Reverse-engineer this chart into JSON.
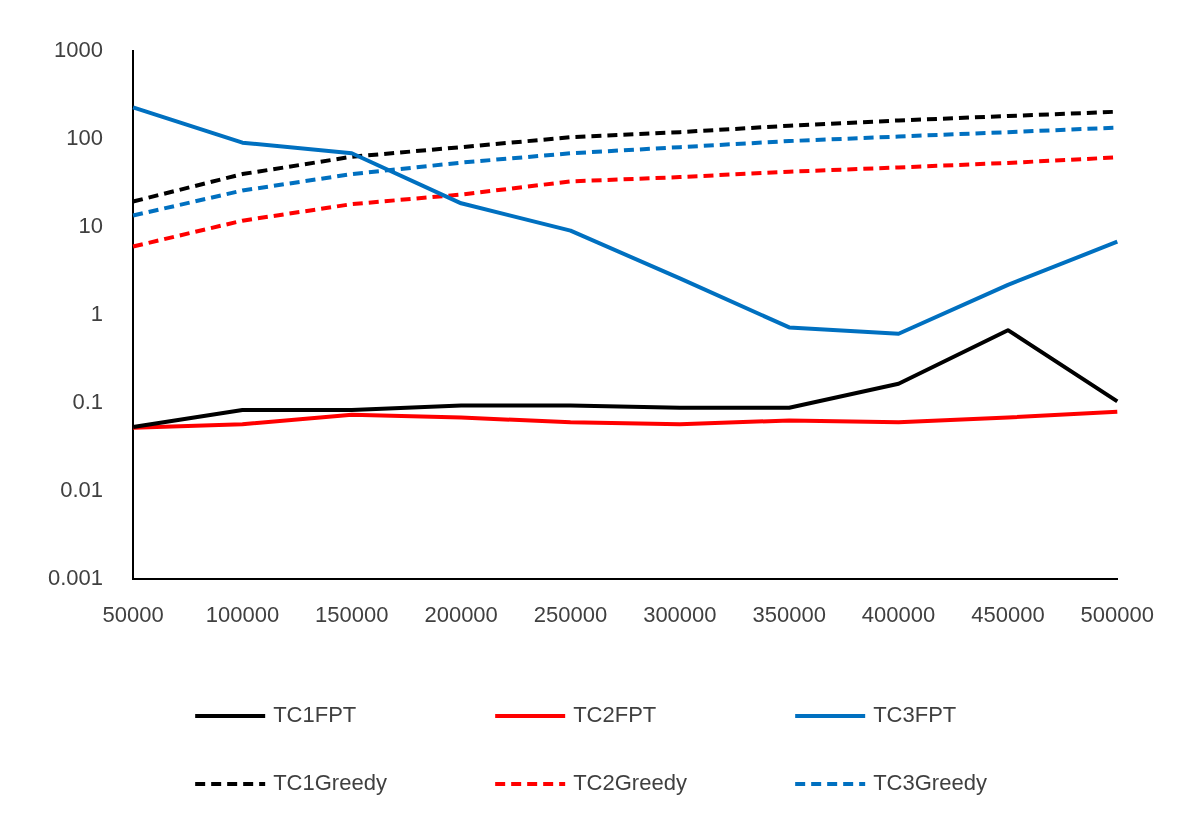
{
  "chart_data": {
    "type": "line",
    "categories": [
      "50000",
      "100000",
      "150000",
      "200000",
      "250000",
      "300000",
      "350000",
      "400000",
      "450000",
      "500000"
    ],
    "log": "y",
    "ylim": [
      0.001,
      1000
    ],
    "yticks": [
      0.001,
      0.01,
      0.1,
      1,
      10,
      100,
      1000
    ],
    "grid": false,
    "legend": "bottom",
    "series": [
      {
        "name": "TC1FPT",
        "color": "#000000",
        "line_style": "solid",
        "values": [
          0.053,
          0.083,
          0.083,
          0.093,
          0.093,
          0.088,
          0.088,
          0.165,
          0.67,
          0.104
        ]
      },
      {
        "name": "TC2FPT",
        "color": "#ff0000",
        "line_style": "solid",
        "values": [
          0.052,
          0.057,
          0.073,
          0.068,
          0.06,
          0.057,
          0.063,
          0.06,
          0.068,
          0.079
        ]
      },
      {
        "name": "TC3FPT",
        "color": "#0070c0",
        "line_style": "solid",
        "values": [
          230,
          91,
          69,
          18.6,
          9.1,
          2.6,
          0.72,
          0.61,
          2.2,
          6.8
        ]
      },
      {
        "name": "TC1Greedy",
        "color": "#000000",
        "line_style": "dashed",
        "values": [
          19.5,
          40,
          63,
          81,
          105,
          120,
          142,
          163,
          183,
          205
        ]
      },
      {
        "name": "TC2Greedy",
        "color": "#ff0000",
        "line_style": "dashed",
        "values": [
          6,
          11.8,
          18.2,
          23.4,
          33,
          37,
          42.6,
          47.6,
          53.6,
          62
        ]
      },
      {
        "name": "TC3Greedy",
        "color": "#0070c0",
        "line_style": "dashed",
        "values": [
          13.5,
          26,
          40,
          54,
          69,
          81,
          95,
          107,
          120,
          135
        ]
      }
    ]
  }
}
